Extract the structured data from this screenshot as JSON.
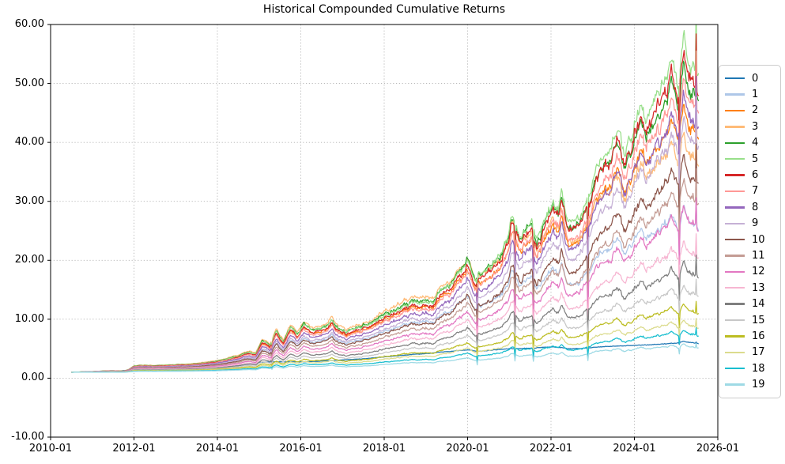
{
  "title": "Historical Compounded Cumulative Returns",
  "axes": {
    "x_tick_labels": [
      "2010-01",
      "2012-01",
      "2014-01",
      "2016-01",
      "2018-01",
      "2020-01",
      "2022-01",
      "2024-01",
      "2026-01"
    ],
    "x_tick_values": [
      2010,
      2012,
      2014,
      2016,
      2018,
      2020,
      2022,
      2024,
      2026
    ],
    "y_tick_labels": [
      "60.00",
      "50.00",
      "40.00",
      "30.00",
      "20.00",
      "10.00",
      "0.00",
      "-10.00"
    ],
    "y_tick_values": [
      60,
      50,
      40,
      30,
      20,
      10,
      0,
      -10
    ],
    "grid_style": "dotted",
    "grid_color": "#b0b0b0",
    "spine_color": "#000000"
  },
  "chart_data": {
    "type": "line",
    "title": "Historical Compounded Cumulative Returns",
    "xlabel": "",
    "ylabel": "",
    "x_range": [
      2010,
      2026
    ],
    "y_range": [
      -10,
      60
    ],
    "x_start_dec": 2010.5,
    "x_end_dec": 2025.54,
    "x_start_label": "2010-07",
    "x_end_label": "2025-07",
    "legend_position": "right-outside",
    "description": "20 cumulative-return series starting at 1.0 in 2010-07; all share a common market shape (base_curve = top series '5'); other series scale the base by k factors interpolated from k_mid (pre-2019 regime) to k_end (2025 regime); series '0' follows its own low-volatility path after 2015.",
    "base_curve": {
      "t": [
        2010.5,
        2010.75,
        2011.0,
        2011.25,
        2011.5,
        2011.75,
        2011.87,
        2012.0,
        2012.25,
        2012.5,
        2012.75,
        2013.0,
        2013.25,
        2013.5,
        2013.75,
        2014.0,
        2014.25,
        2014.5,
        2014.75,
        2014.92,
        2015.0,
        2015.08,
        2015.25,
        2015.42,
        2015.58,
        2015.75,
        2015.92,
        2016.08,
        2016.25,
        2016.42,
        2016.58,
        2016.75,
        2016.92,
        2017.08,
        2017.25,
        2017.5,
        2017.75,
        2018.0,
        2018.25,
        2018.5,
        2018.75,
        2019.0,
        2019.17,
        2019.33,
        2019.5,
        2019.75,
        2019.92,
        2020.0,
        2020.17,
        2020.33,
        2020.5,
        2020.67,
        2020.83,
        2021.0,
        2021.08,
        2021.25,
        2021.42,
        2021.54,
        2021.67,
        2021.83,
        2022.0,
        2022.17,
        2022.25,
        2022.42,
        2022.58,
        2022.75,
        2022.92,
        2023.08,
        2023.25,
        2023.42,
        2023.58,
        2023.75,
        2023.92,
        2024.0,
        2024.17,
        2024.25,
        2024.42,
        2024.58,
        2024.75,
        2024.92,
        2025.04,
        2025.17,
        2025.33,
        2025.54
      ],
      "v": [
        1.0,
        1.07,
        1.12,
        1.21,
        1.27,
        1.2,
        1.45,
        2.02,
        2.15,
        2.08,
        2.18,
        2.24,
        2.3,
        2.44,
        2.6,
        2.9,
        3.3,
        3.7,
        4.3,
        4.0,
        5.1,
        6.3,
        5.4,
        7.9,
        6.2,
        8.7,
        7.3,
        9.2,
        8.0,
        8.6,
        8.4,
        9.9,
        8.3,
        7.8,
        8.3,
        8.9,
        9.6,
        10.6,
        11.3,
        12.1,
        12.6,
        13.6,
        12.9,
        14.2,
        15.6,
        17.2,
        19.4,
        20.3,
        16.8,
        17.9,
        18.8,
        19.5,
        21.5,
        24.5,
        27.8,
        23.8,
        26.0,
        27.6,
        23.8,
        26.5,
        29.8,
        28.5,
        30.8,
        27.2,
        26.6,
        29.5,
        31.5,
        34.5,
        36.0,
        37.0,
        41.5,
        38.5,
        41.0,
        44.0,
        47.5,
        44.5,
        45.5,
        47.0,
        49.5,
        52.0,
        49.5,
        56.0,
        53.0,
        54.0
      ]
    },
    "spike_events": [
      {
        "t": 2015.3,
        "f": 0.68
      },
      {
        "t": 2020.24,
        "f": 0.6
      },
      {
        "t": 2021.13,
        "f": 0.62
      },
      {
        "t": 2021.57,
        "f": 0.65
      },
      {
        "t": 2022.88,
        "f": 0.62
      },
      {
        "t": 2025.07,
        "f": 0.75
      },
      {
        "t": 2025.49,
        "f": 1.2
      }
    ],
    "series": [
      {
        "name": "0",
        "color": "#1f77b4",
        "end_value": 5.9,
        "points": {
          "t": [
            2010.5,
            2011.0,
            2011.5,
            2012.0,
            2012.5,
            2013.0,
            2013.5,
            2014.0,
            2014.5,
            2014.75,
            2015.0,
            2015.5,
            2016.0,
            2016.5,
            2017.0,
            2017.5,
            2018.0,
            2018.5,
            2019.0,
            2019.5,
            2020.0,
            2020.25,
            2020.5,
            2021.0,
            2021.5,
            2022.0,
            2022.5,
            2023.0,
            2023.5,
            2024.0,
            2024.5,
            2025.0,
            2025.17,
            2025.54
          ],
          "v": [
            1.0,
            1.08,
            1.14,
            1.45,
            1.5,
            1.55,
            1.62,
            1.8,
            2.1,
            2.4,
            2.7,
            2.8,
            2.75,
            2.9,
            3.1,
            3.3,
            3.6,
            3.9,
            4.2,
            4.5,
            4.8,
            4.55,
            4.7,
            5.0,
            5.1,
            5.3,
            5.0,
            5.2,
            5.4,
            5.6,
            5.7,
            5.9,
            6.2,
            5.9
          ]
        }
      },
      {
        "name": "1",
        "color": "#aec7e8",
        "k_mid": 0.72,
        "k_end": 0.481,
        "end_value": 26.5
      },
      {
        "name": "2",
        "color": "#ff7f0e",
        "k_mid": 0.93,
        "k_end": 0.792,
        "end_value": 43.0
      },
      {
        "name": "3",
        "color": "#ffbb78",
        "k_mid": 1.07,
        "k_end": 0.698,
        "end_value": 38.0
      },
      {
        "name": "4",
        "color": "#2ca02c",
        "k_mid": 1.02,
        "k_end": 0.915,
        "end_value": 49.5
      },
      {
        "name": "5",
        "color": "#98df8a",
        "k_mid": 1.0,
        "k_end": 1.0,
        "end_value": 54.0
      },
      {
        "name": "6",
        "color": "#d62728",
        "k_mid": 0.95,
        "k_end": 0.953,
        "end_value": 51.5
      },
      {
        "name": "7",
        "color": "#ff9896",
        "k_mid": 0.9,
        "k_end": 0.877,
        "end_value": 47.5
      },
      {
        "name": "8",
        "color": "#9467bd",
        "k_mid": 0.83,
        "k_end": 0.821,
        "end_value": 44.5
      },
      {
        "name": "9",
        "color": "#c5b0d5",
        "k_mid": 0.76,
        "k_end": 0.755,
        "end_value": 41.0
      },
      {
        "name": "10",
        "color": "#8c564b",
        "k_mid": 0.69,
        "k_end": 0.642,
        "end_value": 35.0
      },
      {
        "name": "11",
        "color": "#c49c94",
        "k_mid": 0.62,
        "k_end": 0.566,
        "end_value": 31.0
      },
      {
        "name": "12",
        "color": "#e377c2",
        "k_mid": 0.55,
        "k_end": 0.49,
        "end_value": 27.0
      },
      {
        "name": "13",
        "color": "#f7b6d2",
        "k_mid": 0.48,
        "k_end": 0.387,
        "end_value": 21.5
      },
      {
        "name": "14",
        "color": "#7f7f7f",
        "k_mid": 0.41,
        "k_end": 0.321,
        "end_value": 18.0
      },
      {
        "name": "15",
        "color": "#c7c7c7",
        "k_mid": 0.345,
        "k_end": 0.255,
        "end_value": 14.5
      },
      {
        "name": "16",
        "color": "#bcbd22",
        "k_mid": 0.276,
        "k_end": 0.198,
        "end_value": 11.5
      },
      {
        "name": "17",
        "color": "#dbdb8d",
        "k_mid": 0.228,
        "k_end": 0.151,
        "end_value": 9.0
      },
      {
        "name": "18",
        "color": "#17becf",
        "k_mid": 0.18,
        "k_end": 0.123,
        "end_value": 7.5
      },
      {
        "name": "19",
        "color": "#9edae5",
        "k_mid": 0.138,
        "k_end": 0.081,
        "end_value": 5.3
      }
    ]
  }
}
